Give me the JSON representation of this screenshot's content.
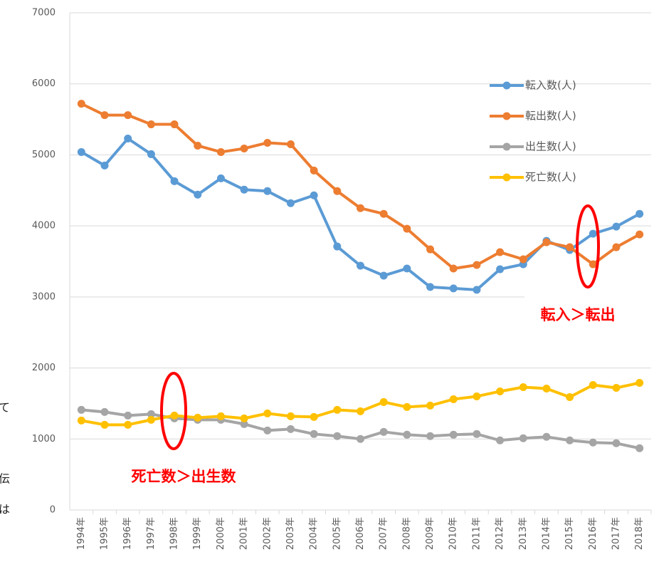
{
  "chart_data": {
    "type": "line",
    "categories": [
      "1994年",
      "1995年",
      "1996年",
      "1997年",
      "1998年",
      "1999年",
      "2000年",
      "2001年",
      "2002年",
      "2003年",
      "2004年",
      "2005年",
      "2006年",
      "2007年",
      "2008年",
      "2009年",
      "2010年",
      "2011年",
      "2012年",
      "2013年",
      "2014年",
      "2015年",
      "2016年",
      "2017年",
      "2018年"
    ],
    "series": [
      {
        "name": "転入数(人)",
        "color": "#5b9bd5",
        "values": [
          5040,
          4850,
          5230,
          5010,
          4630,
          4440,
          4670,
          4510,
          4490,
          4320,
          4430,
          3710,
          3440,
          3300,
          3400,
          3140,
          3120,
          3100,
          3390,
          3460,
          3790,
          3660,
          3890,
          3990,
          4170
        ]
      },
      {
        "name": "転出数(人)",
        "color": "#ed7d31",
        "values": [
          5720,
          5560,
          5560,
          5430,
          5430,
          5130,
          5040,
          5090,
          5170,
          5150,
          4780,
          4490,
          4250,
          4170,
          3960,
          3670,
          3400,
          3450,
          3630,
          3530,
          3770,
          3700,
          3460,
          3700,
          3880
        ]
      },
      {
        "name": "出生数(人)",
        "color": "#a5a5a5",
        "values": [
          1410,
          1380,
          1330,
          1350,
          1290,
          1270,
          1270,
          1210,
          1120,
          1140,
          1070,
          1040,
          1000,
          1100,
          1060,
          1040,
          1060,
          1070,
          980,
          1010,
          1030,
          980,
          950,
          940,
          870
        ]
      },
      {
        "name": "死亡数(人)",
        "color": "#ffc000",
        "values": [
          1260,
          1200,
          1200,
          1270,
          1330,
          1300,
          1320,
          1290,
          1360,
          1320,
          1310,
          1410,
          1390,
          1520,
          1450,
          1470,
          1560,
          1600,
          1670,
          1730,
          1710,
          1590,
          1760,
          1720,
          1790
        ]
      }
    ],
    "ylim": [
      0,
      7000
    ],
    "yticks": [
      0,
      1000,
      2000,
      3000,
      4000,
      5000,
      6000,
      7000
    ],
    "grid": true,
    "annotations": [
      "転入＞転出",
      "死亡数＞出生数"
    ],
    "side_text": [
      "て",
      "伝",
      "は"
    ]
  }
}
